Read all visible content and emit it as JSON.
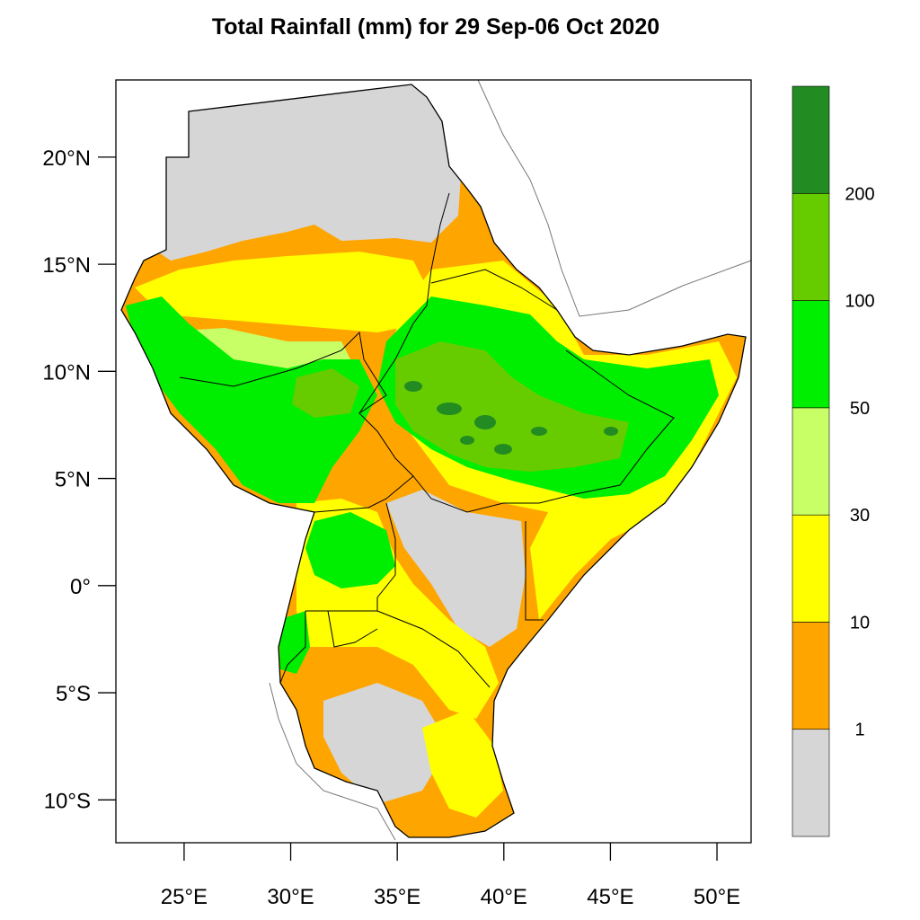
{
  "title": "Total Rainfall (mm) for 29 Sep-06 Oct 2020",
  "colors": {
    "no_data": "#d6d6d6",
    "r1_10": "#ffa500",
    "r10_30": "#ffff00",
    "r30_50": "#c8ff66",
    "r50_100": "#00ee00",
    "r100_200": "#66cc00",
    "r200_plus": "#228b22"
  },
  "map": {
    "lon_range": [
      21.8,
      51.6
    ],
    "lat_range": [
      -12.0,
      23.6
    ],
    "x_ticks": [
      {
        "value": 25,
        "label": "25°E"
      },
      {
        "value": 30,
        "label": "30°E"
      },
      {
        "value": 35,
        "label": "35°E"
      },
      {
        "value": 40,
        "label": "40°E"
      },
      {
        "value": 45,
        "label": "45°E"
      },
      {
        "value": 50,
        "label": "50°E"
      }
    ],
    "y_ticks": [
      {
        "value": 20,
        "label": "20°N"
      },
      {
        "value": 15,
        "label": "15°N"
      },
      {
        "value": 10,
        "label": "10°N"
      },
      {
        "value": 5,
        "label": "5°N"
      },
      {
        "value": 0,
        "label": "0°"
      },
      {
        "value": -5,
        "label": "5°S"
      },
      {
        "value": -10,
        "label": "10°S"
      }
    ]
  },
  "colorbar": {
    "bins": [
      {
        "color": "#d6d6d6"
      },
      {
        "color": "#ffa500"
      },
      {
        "color": "#ffff00"
      },
      {
        "color": "#c8ff66"
      },
      {
        "color": "#00ee00"
      },
      {
        "color": "#66cc00"
      },
      {
        "color": "#228b22"
      }
    ],
    "labels": [
      "1",
      "10",
      "30",
      "50",
      "100",
      "200"
    ]
  }
}
